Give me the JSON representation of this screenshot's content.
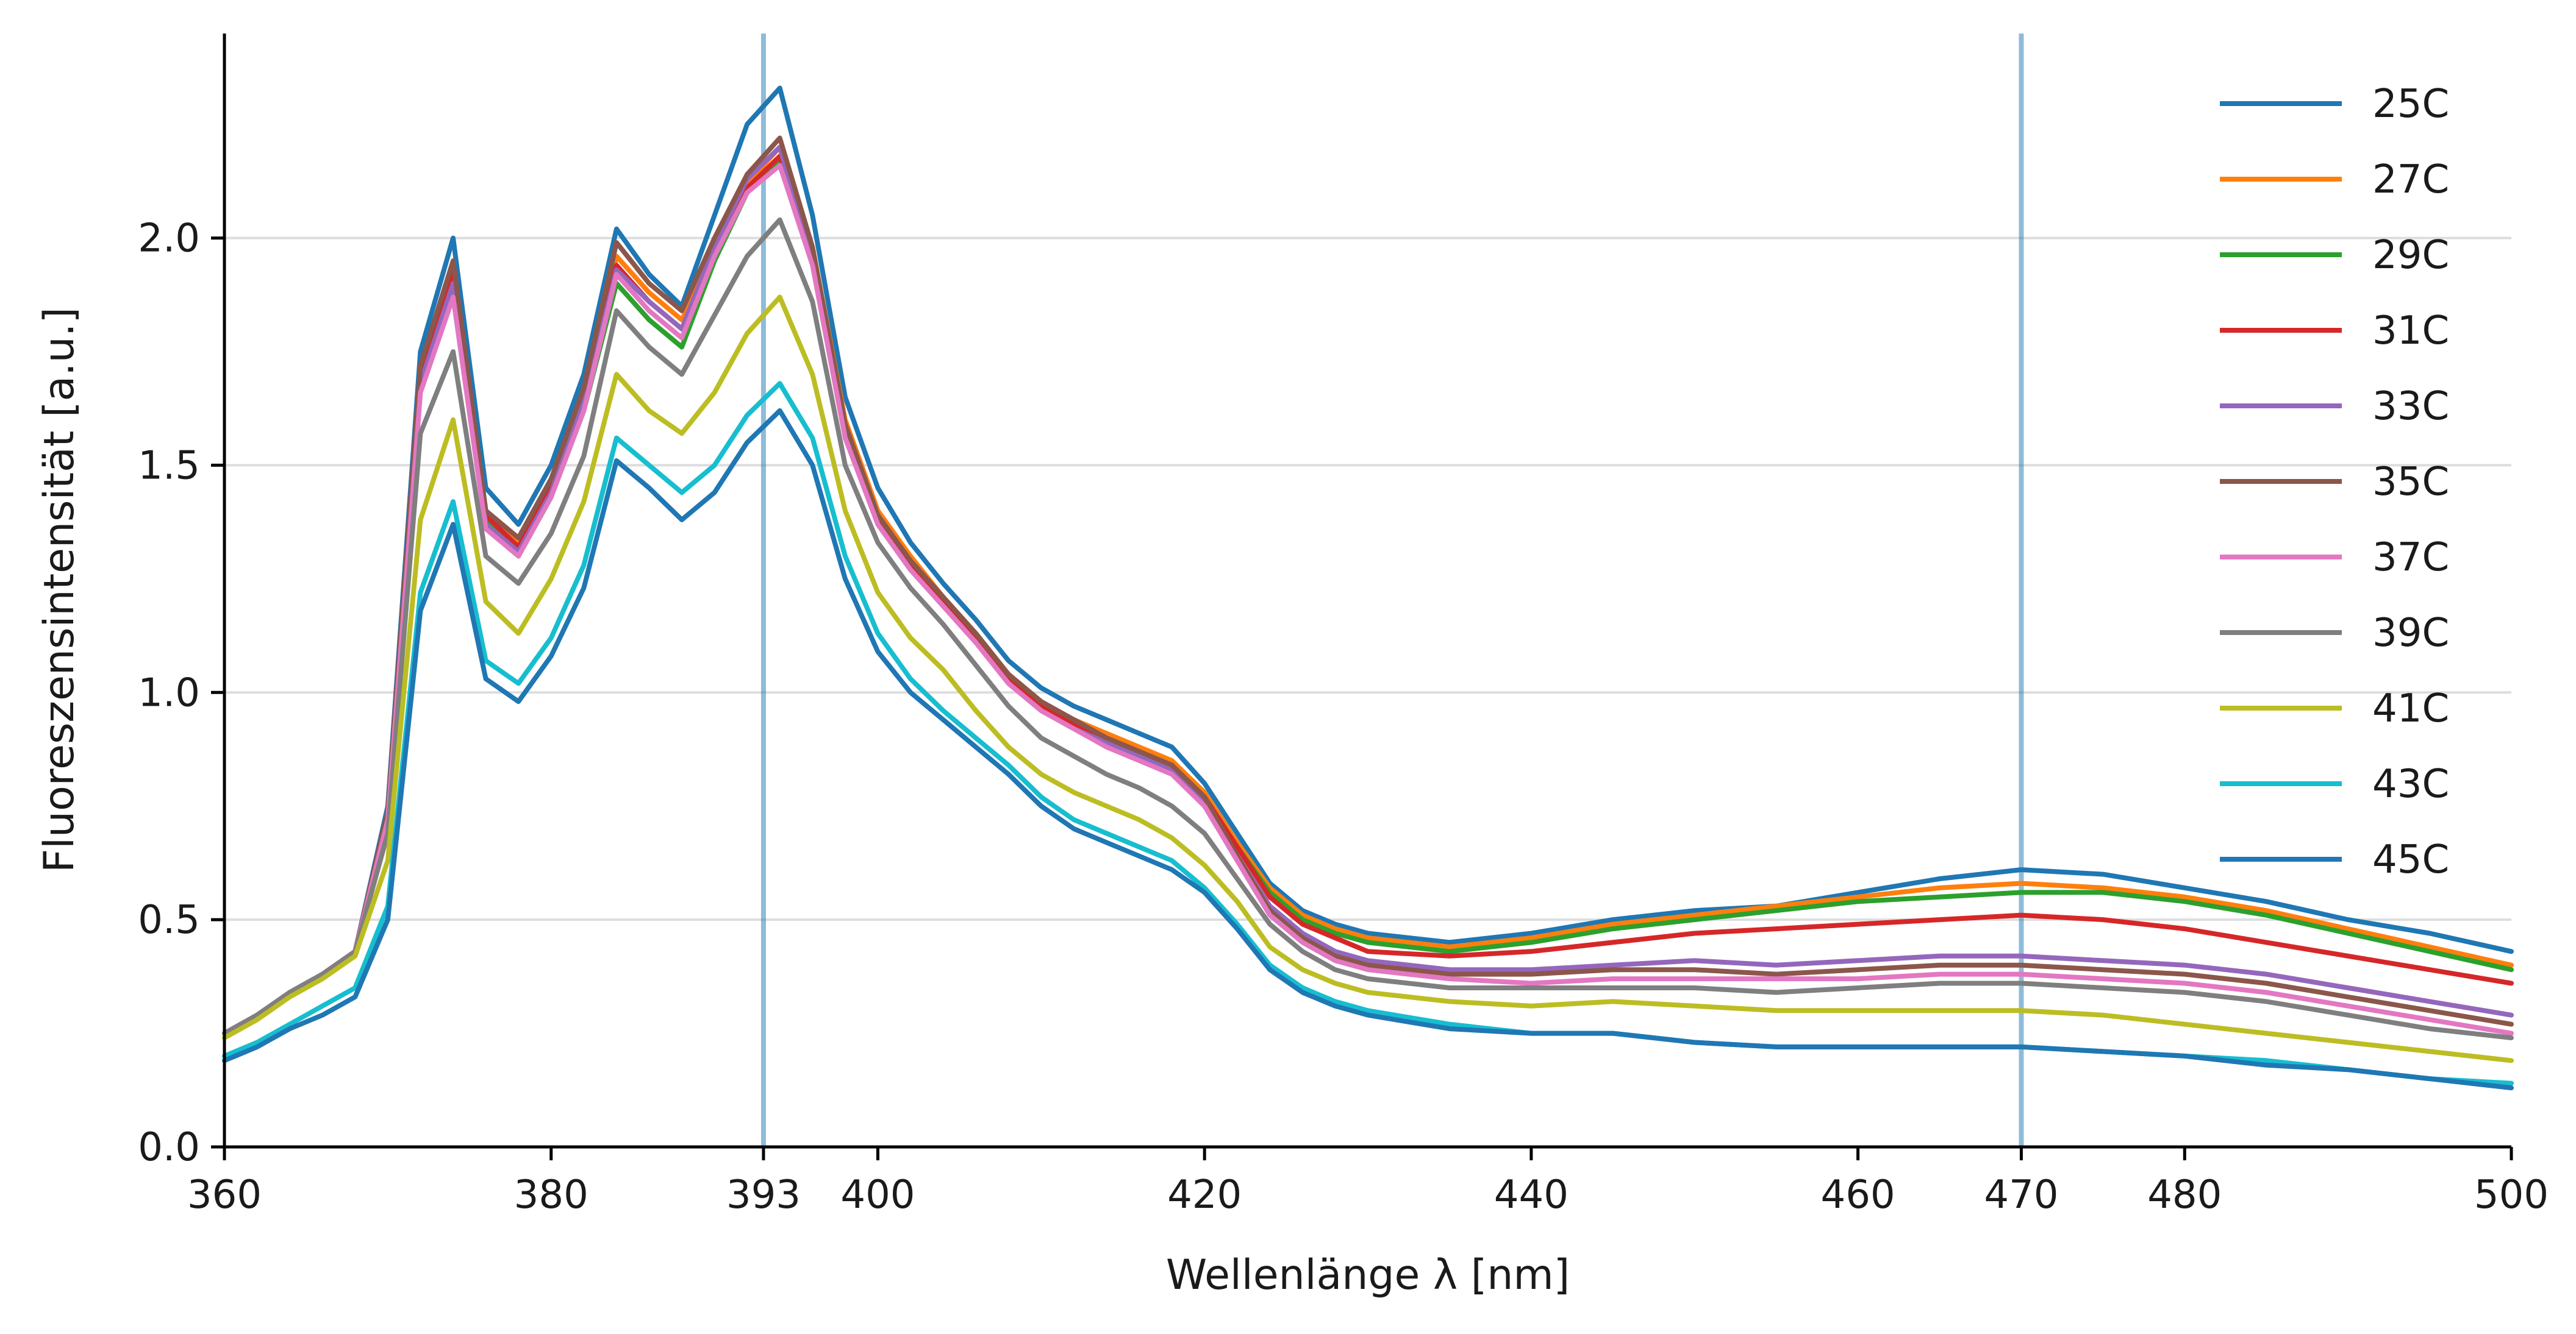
{
  "chart_data": {
    "type": "line",
    "title": "",
    "xlabel": "Wellenlänge λ [nm]",
    "ylabel": "Fluoreszensintensität [a.u.]",
    "xlim": [
      360,
      500
    ],
    "ylim": [
      0,
      2.45
    ],
    "xticks": [
      360,
      380,
      393,
      400,
      420,
      440,
      460,
      470,
      480,
      500
    ],
    "xtick_labels": [
      "360",
      "380",
      "393",
      "400",
      "420",
      "440",
      "460",
      "470",
      "480",
      "500"
    ],
    "yticks": [
      0.0,
      0.5,
      1.0,
      1.5,
      2.0
    ],
    "ytick_labels": [
      "0.0",
      "0.5",
      "1.0",
      "1.5",
      "2.0"
    ],
    "grid": "horizontal",
    "legend_position": "top-right",
    "vertical_markers": [
      393,
      470
    ],
    "x": [
      360,
      362,
      364,
      366,
      368,
      370,
      372,
      374,
      376,
      378,
      380,
      382,
      384,
      386,
      388,
      390,
      392,
      394,
      396,
      398,
      400,
      402,
      404,
      406,
      408,
      410,
      412,
      414,
      416,
      418,
      420,
      422,
      424,
      426,
      428,
      430,
      435,
      440,
      445,
      450,
      455,
      460,
      465,
      470,
      475,
      480,
      485,
      490,
      495,
      500
    ],
    "series": [
      {
        "name": "25C",
        "color": "#1f77b4",
        "values": [
          0.25,
          0.29,
          0.34,
          0.38,
          0.43,
          0.75,
          1.75,
          2.0,
          1.45,
          1.37,
          1.5,
          1.7,
          2.02,
          1.92,
          1.85,
          2.05,
          2.25,
          2.33,
          2.05,
          1.65,
          1.45,
          1.33,
          1.24,
          1.16,
          1.07,
          1.01,
          0.97,
          0.94,
          0.91,
          0.88,
          0.8,
          0.69,
          0.58,
          0.52,
          0.49,
          0.47,
          0.45,
          0.47,
          0.5,
          0.52,
          0.53,
          0.56,
          0.59,
          0.61,
          0.6,
          0.57,
          0.54,
          0.5,
          0.47,
          0.43
        ]
      },
      {
        "name": "27C",
        "color": "#ff7f0e",
        "values": [
          0.25,
          0.29,
          0.34,
          0.38,
          0.43,
          0.73,
          1.7,
          1.92,
          1.4,
          1.33,
          1.45,
          1.65,
          1.96,
          1.88,
          1.82,
          1.97,
          2.12,
          2.2,
          1.98,
          1.6,
          1.4,
          1.3,
          1.21,
          1.13,
          1.04,
          0.98,
          0.94,
          0.91,
          0.88,
          0.85,
          0.78,
          0.67,
          0.57,
          0.51,
          0.48,
          0.46,
          0.44,
          0.46,
          0.49,
          0.51,
          0.53,
          0.55,
          0.57,
          0.58,
          0.57,
          0.55,
          0.52,
          0.48,
          0.44,
          0.4
        ]
      },
      {
        "name": "29C",
        "color": "#2ca02c",
        "values": [
          0.25,
          0.29,
          0.34,
          0.38,
          0.43,
          0.73,
          1.68,
          1.9,
          1.38,
          1.3,
          1.43,
          1.62,
          1.9,
          1.82,
          1.76,
          1.95,
          2.1,
          2.17,
          1.96,
          1.58,
          1.38,
          1.28,
          1.2,
          1.12,
          1.03,
          0.97,
          0.93,
          0.9,
          0.87,
          0.84,
          0.77,
          0.66,
          0.56,
          0.5,
          0.47,
          0.45,
          0.43,
          0.45,
          0.48,
          0.5,
          0.52,
          0.54,
          0.55,
          0.56,
          0.56,
          0.54,
          0.51,
          0.47,
          0.43,
          0.39
        ]
      },
      {
        "name": "31C",
        "color": "#d62728",
        "values": [
          0.25,
          0.29,
          0.34,
          0.38,
          0.43,
          0.73,
          1.7,
          1.93,
          1.39,
          1.32,
          1.45,
          1.64,
          1.94,
          1.86,
          1.8,
          1.98,
          2.11,
          2.18,
          1.96,
          1.58,
          1.38,
          1.28,
          1.2,
          1.12,
          1.03,
          0.97,
          0.93,
          0.9,
          0.87,
          0.84,
          0.77,
          0.66,
          0.55,
          0.49,
          0.46,
          0.43,
          0.42,
          0.43,
          0.45,
          0.47,
          0.48,
          0.49,
          0.5,
          0.51,
          0.5,
          0.48,
          0.45,
          0.42,
          0.39,
          0.36
        ]
      },
      {
        "name": "33C",
        "color": "#9467bd",
        "values": [
          0.25,
          0.29,
          0.34,
          0.38,
          0.43,
          0.73,
          1.68,
          1.9,
          1.37,
          1.31,
          1.44,
          1.64,
          1.93,
          1.86,
          1.8,
          1.98,
          2.13,
          2.2,
          1.95,
          1.57,
          1.37,
          1.27,
          1.19,
          1.11,
          1.02,
          0.96,
          0.92,
          0.89,
          0.86,
          0.83,
          0.76,
          0.64,
          0.53,
          0.47,
          0.43,
          0.41,
          0.39,
          0.39,
          0.4,
          0.41,
          0.4,
          0.41,
          0.42,
          0.42,
          0.41,
          0.4,
          0.38,
          0.35,
          0.32,
          0.29
        ]
      },
      {
        "name": "35C",
        "color": "#8c564b",
        "values": [
          0.25,
          0.29,
          0.34,
          0.38,
          0.43,
          0.74,
          1.72,
          1.95,
          1.4,
          1.34,
          1.47,
          1.67,
          1.99,
          1.9,
          1.84,
          2.0,
          2.14,
          2.22,
          1.98,
          1.59,
          1.39,
          1.29,
          1.21,
          1.13,
          1.04,
          0.98,
          0.94,
          0.9,
          0.87,
          0.84,
          0.77,
          0.64,
          0.52,
          0.46,
          0.42,
          0.4,
          0.38,
          0.38,
          0.39,
          0.39,
          0.38,
          0.39,
          0.4,
          0.4,
          0.39,
          0.38,
          0.36,
          0.33,
          0.3,
          0.27
        ]
      },
      {
        "name": "37C",
        "color": "#e377c2",
        "values": [
          0.25,
          0.29,
          0.34,
          0.38,
          0.43,
          0.72,
          1.66,
          1.87,
          1.36,
          1.3,
          1.43,
          1.62,
          1.92,
          1.84,
          1.78,
          1.96,
          2.1,
          2.16,
          1.94,
          1.56,
          1.37,
          1.27,
          1.19,
          1.11,
          1.02,
          0.96,
          0.92,
          0.88,
          0.85,
          0.82,
          0.75,
          0.63,
          0.51,
          0.45,
          0.41,
          0.39,
          0.37,
          0.36,
          0.37,
          0.37,
          0.37,
          0.37,
          0.38,
          0.38,
          0.37,
          0.36,
          0.34,
          0.31,
          0.28,
          0.25
        ]
      },
      {
        "name": "39C",
        "color": "#7f7f7f",
        "values": [
          0.25,
          0.29,
          0.34,
          0.38,
          0.43,
          0.69,
          1.57,
          1.75,
          1.3,
          1.24,
          1.35,
          1.52,
          1.84,
          1.76,
          1.7,
          1.83,
          1.96,
          2.04,
          1.86,
          1.5,
          1.33,
          1.23,
          1.15,
          1.06,
          0.97,
          0.9,
          0.86,
          0.82,
          0.79,
          0.75,
          0.69,
          0.59,
          0.49,
          0.43,
          0.39,
          0.37,
          0.35,
          0.35,
          0.35,
          0.35,
          0.34,
          0.35,
          0.36,
          0.36,
          0.35,
          0.34,
          0.32,
          0.29,
          0.26,
          0.24
        ]
      },
      {
        "name": "41C",
        "color": "#bcbd22",
        "values": [
          0.24,
          0.28,
          0.33,
          0.37,
          0.42,
          0.63,
          1.38,
          1.6,
          1.2,
          1.13,
          1.25,
          1.42,
          1.7,
          1.62,
          1.57,
          1.66,
          1.79,
          1.87,
          1.7,
          1.4,
          1.22,
          1.12,
          1.05,
          0.96,
          0.88,
          0.82,
          0.78,
          0.75,
          0.72,
          0.68,
          0.62,
          0.54,
          0.44,
          0.39,
          0.36,
          0.34,
          0.32,
          0.31,
          0.32,
          0.31,
          0.3,
          0.3,
          0.3,
          0.3,
          0.29,
          0.27,
          0.25,
          0.23,
          0.21,
          0.19
        ]
      },
      {
        "name": "43C",
        "color": "#17becf",
        "values": [
          0.2,
          0.23,
          0.27,
          0.31,
          0.35,
          0.53,
          1.22,
          1.42,
          1.07,
          1.02,
          1.12,
          1.28,
          1.56,
          1.5,
          1.44,
          1.5,
          1.61,
          1.68,
          1.56,
          1.3,
          1.13,
          1.03,
          0.96,
          0.9,
          0.84,
          0.77,
          0.72,
          0.69,
          0.66,
          0.63,
          0.57,
          0.49,
          0.4,
          0.35,
          0.32,
          0.3,
          0.27,
          0.25,
          0.25,
          0.23,
          0.22,
          0.22,
          0.22,
          0.22,
          0.21,
          0.2,
          0.19,
          0.17,
          0.15,
          0.14
        ]
      },
      {
        "name": "45C",
        "color": "#1f77b4",
        "values": [
          0.19,
          0.22,
          0.26,
          0.29,
          0.33,
          0.5,
          1.18,
          1.37,
          1.03,
          0.98,
          1.08,
          1.23,
          1.51,
          1.45,
          1.38,
          1.44,
          1.55,
          1.62,
          1.5,
          1.25,
          1.09,
          1.0,
          0.94,
          0.88,
          0.82,
          0.75,
          0.7,
          0.67,
          0.64,
          0.61,
          0.56,
          0.48,
          0.39,
          0.34,
          0.31,
          0.29,
          0.26,
          0.25,
          0.25,
          0.23,
          0.22,
          0.22,
          0.22,
          0.22,
          0.21,
          0.2,
          0.18,
          0.17,
          0.15,
          0.13
        ]
      }
    ]
  }
}
